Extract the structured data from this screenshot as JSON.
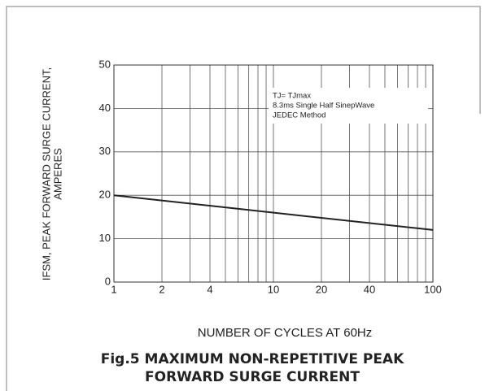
{
  "chart_data": {
    "type": "line",
    "title": [
      "Fig.5 MAXIMUM NON-REPETITIVE PEAK",
      "FORWARD SURGE CURRENT"
    ],
    "x_label": "NUMBER OF CYCLES AT 60Hz",
    "y_label": [
      "IFSM, PEAK FORWARD SURGE CURRENT,",
      "AMPERES"
    ],
    "annotation": [
      "TJ= TJmax",
      "8.3ms Single Half SinepWave",
      "JEDEC Method"
    ],
    "x": [
      1,
      100
    ],
    "series": [
      {
        "name": "IFSM",
        "color": "#222222",
        "values": [
          20,
          12
        ]
      }
    ],
    "xlim": [
      1,
      100
    ],
    "xticks": [
      1,
      2,
      4,
      10,
      20,
      40,
      100
    ],
    "xminor_ticks": [
      3,
      5,
      6,
      7,
      8,
      9,
      30,
      50,
      60,
      70,
      80,
      90
    ],
    "x_log": true,
    "ylim": [
      0,
      50
    ],
    "yticks": [
      0,
      10,
      20,
      30,
      40,
      50
    ],
    "grid": true
  }
}
